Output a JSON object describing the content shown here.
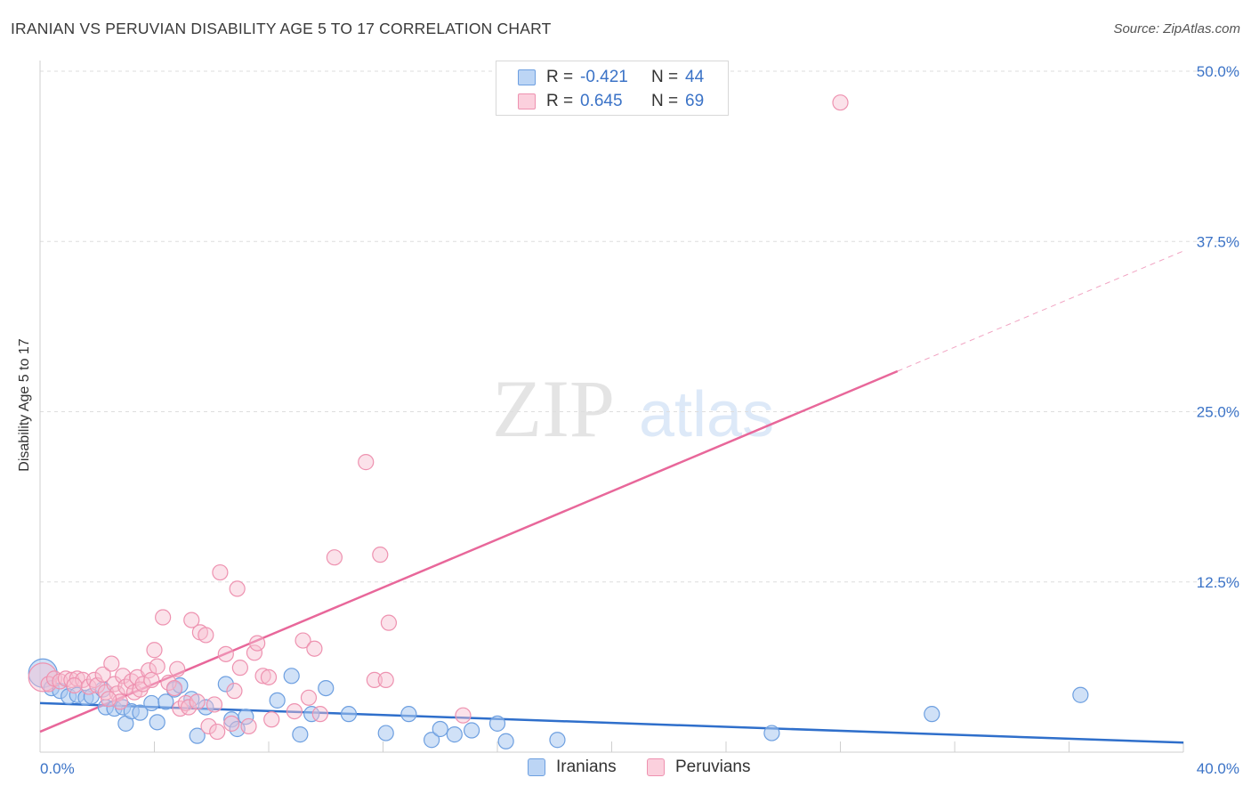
{
  "title": "IRANIAN VS PERUVIAN DISABILITY AGE 5 TO 17 CORRELATION CHART",
  "source": "Source: ZipAtlas.com",
  "watermark": {
    "zip": "ZIP",
    "atlas": "atlas"
  },
  "colors": {
    "iranians_fill": "#a9c8f0",
    "iranians_stroke": "#6d9fe0",
    "iranians_line": "#2f6fcb",
    "peruvians_fill": "#f6bfd0",
    "peruvians_stroke": "#ee92b0",
    "peruvians_line": "#e8679a",
    "axis_text": "#3b73c7",
    "grid": "#dedede"
  },
  "legend": {
    "rows": [
      {
        "series": "Iranians",
        "r_label": "R =",
        "r_value": "-0.421",
        "n_label": "N =",
        "n_value": "44"
      },
      {
        "series": "Peruvians",
        "r_label": "R =",
        "r_value": "0.645",
        "n_label": "N =",
        "n_value": "69"
      }
    ]
  },
  "bottom_legend": [
    "Iranians",
    "Peruvians"
  ],
  "chart_data": {
    "type": "scatter",
    "title": "IRANIAN VS PERUVIAN DISABILITY AGE 5 TO 17 CORRELATION CHART",
    "xlabel": "",
    "ylabel": "Disability Age 5 to 17",
    "xlim": [
      0,
      40
    ],
    "ylim": [
      0,
      50
    ],
    "x_tick_labels": [
      "0.0%",
      "40.0%"
    ],
    "y_ticks": [
      12.5,
      25.0,
      37.5,
      50.0
    ],
    "y_tick_labels": [
      "12.5%",
      "25.0%",
      "37.5%",
      "50.0%"
    ],
    "grid": true,
    "legend_position": "top-center",
    "series": [
      {
        "name": "Iranians",
        "r": -0.421,
        "n": 44,
        "trend": {
          "x": [
            0,
            40
          ],
          "y": [
            3.6,
            0.7
          ],
          "dashed_after": null
        },
        "points": [
          {
            "x": 0.1,
            "y": 5.8,
            "big": true
          },
          {
            "x": 0.4,
            "y": 4.7
          },
          {
            "x": 0.7,
            "y": 4.5
          },
          {
            "x": 1.0,
            "y": 4.1
          },
          {
            "x": 1.3,
            "y": 4.2
          },
          {
            "x": 1.6,
            "y": 4.0
          },
          {
            "x": 1.8,
            "y": 4.1
          },
          {
            "x": 2.2,
            "y": 4.6
          },
          {
            "x": 2.3,
            "y": 3.3
          },
          {
            "x": 2.6,
            "y": 3.2
          },
          {
            "x": 2.9,
            "y": 3.3
          },
          {
            "x": 3.0,
            "y": 2.1
          },
          {
            "x": 3.2,
            "y": 3.0
          },
          {
            "x": 3.5,
            "y": 2.9
          },
          {
            "x": 3.9,
            "y": 3.6
          },
          {
            "x": 4.1,
            "y": 2.2
          },
          {
            "x": 4.4,
            "y": 3.7
          },
          {
            "x": 4.7,
            "y": 4.6
          },
          {
            "x": 4.9,
            "y": 4.9
          },
          {
            "x": 5.3,
            "y": 3.9
          },
          {
            "x": 5.5,
            "y": 1.2
          },
          {
            "x": 5.8,
            "y": 3.3
          },
          {
            "x": 6.5,
            "y": 5.0
          },
          {
            "x": 6.7,
            "y": 2.4
          },
          {
            "x": 6.9,
            "y": 1.7
          },
          {
            "x": 7.2,
            "y": 2.6
          },
          {
            "x": 8.3,
            "y": 3.8
          },
          {
            "x": 8.8,
            "y": 5.6
          },
          {
            "x": 9.1,
            "y": 1.3
          },
          {
            "x": 9.5,
            "y": 2.8
          },
          {
            "x": 10.0,
            "y": 4.7
          },
          {
            "x": 10.8,
            "y": 2.8
          },
          {
            "x": 12.1,
            "y": 1.4
          },
          {
            "x": 12.9,
            "y": 2.8
          },
          {
            "x": 13.7,
            "y": 0.9
          },
          {
            "x": 14.0,
            "y": 1.7
          },
          {
            "x": 14.5,
            "y": 1.3
          },
          {
            "x": 15.1,
            "y": 1.6
          },
          {
            "x": 16.0,
            "y": 2.1
          },
          {
            "x": 16.3,
            "y": 0.8
          },
          {
            "x": 18.1,
            "y": 0.9
          },
          {
            "x": 25.6,
            "y": 1.4
          },
          {
            "x": 31.2,
            "y": 2.8
          },
          {
            "x": 36.4,
            "y": 4.2
          }
        ]
      },
      {
        "name": "Peruvians",
        "r": 0.645,
        "n": 69,
        "trend": {
          "x": [
            0,
            40
          ],
          "y": [
            1.5,
            36.8
          ],
          "solid_until_x": 30.0
        },
        "points": [
          {
            "x": 0.1,
            "y": 5.5,
            "big": true
          },
          {
            "x": 0.3,
            "y": 5.0
          },
          {
            "x": 0.5,
            "y": 5.4
          },
          {
            "x": 0.7,
            "y": 5.2
          },
          {
            "x": 0.9,
            "y": 5.4
          },
          {
            "x": 1.1,
            "y": 5.3
          },
          {
            "x": 1.3,
            "y": 5.4
          },
          {
            "x": 1.5,
            "y": 5.3
          },
          {
            "x": 1.7,
            "y": 4.8
          },
          {
            "x": 1.9,
            "y": 5.3
          },
          {
            "x": 2.0,
            "y": 4.9
          },
          {
            "x": 2.2,
            "y": 5.7
          },
          {
            "x": 2.3,
            "y": 4.4
          },
          {
            "x": 2.5,
            "y": 6.5
          },
          {
            "x": 2.6,
            "y": 5.0
          },
          {
            "x": 2.7,
            "y": 4.3
          },
          {
            "x": 2.8,
            "y": 3.7
          },
          {
            "x": 2.9,
            "y": 5.6
          },
          {
            "x": 3.0,
            "y": 4.8
          },
          {
            "x": 3.2,
            "y": 5.2
          },
          {
            "x": 3.3,
            "y": 4.4
          },
          {
            "x": 3.4,
            "y": 5.5
          },
          {
            "x": 3.5,
            "y": 4.6
          },
          {
            "x": 3.6,
            "y": 5.0
          },
          {
            "x": 3.8,
            "y": 6.0
          },
          {
            "x": 3.9,
            "y": 5.3
          },
          {
            "x": 4.0,
            "y": 7.5
          },
          {
            "x": 4.1,
            "y": 6.3
          },
          {
            "x": 4.3,
            "y": 9.9
          },
          {
            "x": 4.5,
            "y": 5.1
          },
          {
            "x": 4.7,
            "y": 4.7
          },
          {
            "x": 4.8,
            "y": 6.1
          },
          {
            "x": 4.9,
            "y": 3.2
          },
          {
            "x": 5.1,
            "y": 3.6
          },
          {
            "x": 5.2,
            "y": 3.3
          },
          {
            "x": 5.3,
            "y": 9.7
          },
          {
            "x": 5.5,
            "y": 3.7
          },
          {
            "x": 5.6,
            "y": 8.8
          },
          {
            "x": 5.8,
            "y": 8.6
          },
          {
            "x": 5.9,
            "y": 1.9
          },
          {
            "x": 6.1,
            "y": 3.5
          },
          {
            "x": 6.2,
            "y": 1.5
          },
          {
            "x": 6.3,
            "y": 13.2
          },
          {
            "x": 6.5,
            "y": 7.2
          },
          {
            "x": 6.7,
            "y": 2.1
          },
          {
            "x": 6.8,
            "y": 4.5
          },
          {
            "x": 6.9,
            "y": 12.0
          },
          {
            "x": 7.0,
            "y": 6.2
          },
          {
            "x": 7.3,
            "y": 1.9
          },
          {
            "x": 7.5,
            "y": 7.3
          },
          {
            "x": 7.6,
            "y": 8.0
          },
          {
            "x": 7.8,
            "y": 5.6
          },
          {
            "x": 8.0,
            "y": 5.5
          },
          {
            "x": 8.1,
            "y": 2.4
          },
          {
            "x": 8.9,
            "y": 3.0
          },
          {
            "x": 9.2,
            "y": 8.2
          },
          {
            "x": 9.4,
            "y": 4.0
          },
          {
            "x": 9.6,
            "y": 7.6
          },
          {
            "x": 9.8,
            "y": 2.8
          },
          {
            "x": 10.3,
            "y": 14.3
          },
          {
            "x": 11.4,
            "y": 21.3
          },
          {
            "x": 11.7,
            "y": 5.3
          },
          {
            "x": 11.9,
            "y": 14.5
          },
          {
            "x": 12.1,
            "y": 5.3
          },
          {
            "x": 12.2,
            "y": 9.5
          },
          {
            "x": 14.8,
            "y": 2.7
          },
          {
            "x": 28.0,
            "y": 47.7
          },
          {
            "x": 1.2,
            "y": 4.9
          },
          {
            "x": 2.4,
            "y": 3.9
          }
        ]
      }
    ]
  }
}
